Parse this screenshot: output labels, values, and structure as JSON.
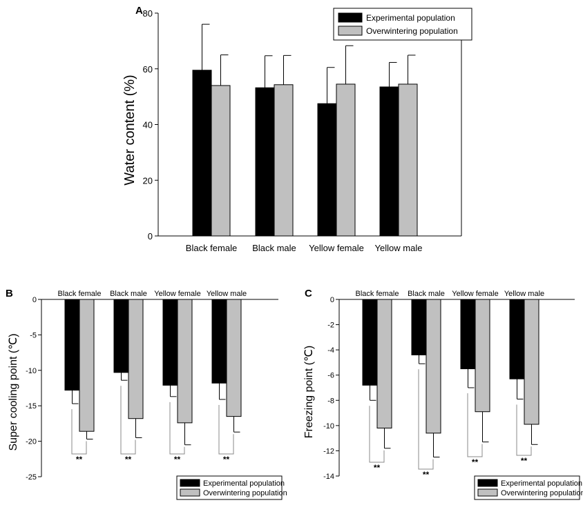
{
  "figure": {
    "panels": [
      "A",
      "B",
      "C"
    ]
  },
  "colors": {
    "experimental": "#000000",
    "overwintering": "#c0c0c0"
  },
  "chart_data": [
    {
      "panel": "A",
      "type": "bar",
      "categories": [
        "Black female",
        "Black male",
        "Yellow female",
        "Yellow male"
      ],
      "series": [
        {
          "name": "Experimental population",
          "values": [
            59.5,
            53.2,
            47.5,
            53.5
          ],
          "errors": [
            16.5,
            11.5,
            13.0,
            8.8
          ]
        },
        {
          "name": "Overwintering population",
          "values": [
            54.0,
            54.3,
            54.5,
            54.5
          ],
          "errors": [
            11.0,
            10.5,
            13.8,
            10.4
          ]
        }
      ],
      "ylabel": "Water content (%)",
      "ylim": [
        0,
        80
      ],
      "yticks": [
        0,
        20,
        40,
        60,
        80
      ],
      "legend": "top-right"
    },
    {
      "panel": "B",
      "type": "bar",
      "categories": [
        "Black female",
        "Black male",
        "Yellow female",
        "Yellow male"
      ],
      "series": [
        {
          "name": "Experimental population",
          "values": [
            -12.8,
            -10.3,
            -12.1,
            -11.8
          ],
          "errors": [
            1.9,
            1.1,
            1.6,
            2.3
          ]
        },
        {
          "name": "Overwintering population",
          "values": [
            -18.6,
            -16.8,
            -17.4,
            -16.5
          ],
          "errors": [
            1.1,
            2.7,
            3.1,
            2.2
          ]
        }
      ],
      "ylabel": "Super cooling point (℃)",
      "ylim": [
        -25,
        0
      ],
      "yticks": [
        0,
        -5,
        -10,
        -15,
        -20,
        -25
      ],
      "significance": [
        "**",
        "**",
        "**",
        "**"
      ],
      "legend": "bottom-right"
    },
    {
      "panel": "C",
      "type": "bar",
      "categories": [
        "Black female",
        "Black male",
        "Yellow female",
        "Yellow male"
      ],
      "series": [
        {
          "name": "Experimental population",
          "values": [
            -6.8,
            -4.4,
            -5.5,
            -6.3
          ],
          "errors": [
            1.2,
            0.7,
            1.5,
            1.6
          ]
        },
        {
          "name": "Overwintering population",
          "values": [
            -10.2,
            -10.6,
            -8.9,
            -9.9
          ],
          "errors": [
            1.6,
            1.9,
            2.4,
            1.6
          ]
        }
      ],
      "ylabel": "Freezing point (℃)",
      "ylim": [
        -14,
        0
      ],
      "yticks": [
        0,
        -2,
        -4,
        -6,
        -8,
        -10,
        -12,
        -14
      ],
      "significance": [
        "**",
        "**",
        "**",
        "**"
      ],
      "legend": "bottom-right"
    }
  ]
}
